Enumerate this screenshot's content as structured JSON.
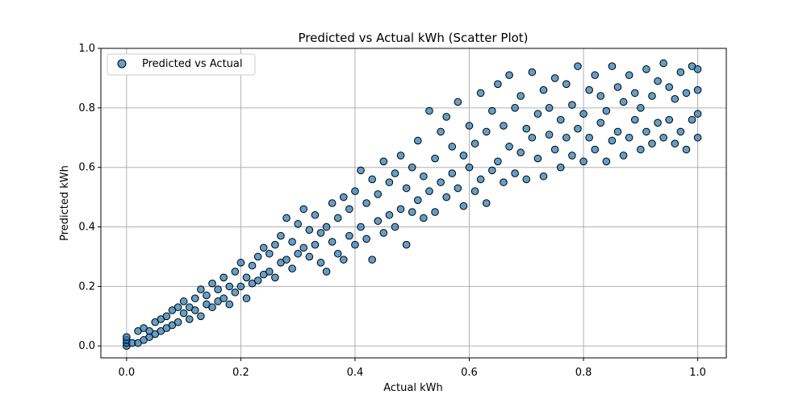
{
  "chart_data": {
    "type": "scatter",
    "title": "Predicted vs Actual kWh (Scatter Plot)",
    "xlabel": "Actual kWh",
    "ylabel": "Predicted kWh",
    "xlim": [
      -0.045,
      1.05
    ],
    "ylim": [
      -0.04,
      1.0
    ],
    "xticks": [
      0.0,
      0.2,
      0.4,
      0.6,
      0.8,
      1.0
    ],
    "xtick_labels": [
      "0.0",
      "0.2",
      "0.4",
      "0.6",
      "0.8",
      "1.0"
    ],
    "yticks": [
      0.0,
      0.2,
      0.4,
      0.6,
      0.8,
      1.0
    ],
    "ytick_labels": [
      "0.0",
      "0.2",
      "0.4",
      "0.6",
      "0.8",
      "1.0"
    ],
    "grid": true,
    "legend_position": "top-left",
    "marker_color": "#1f77b4",
    "marker_edge_color": "#000000",
    "series": [
      {
        "name": "Predicted vs Actual",
        "points": [
          [
            0.0,
            0.0
          ],
          [
            0.0,
            0.01
          ],
          [
            0.0,
            0.02
          ],
          [
            0.0,
            0.03
          ],
          [
            0.01,
            0.01
          ],
          [
            0.02,
            0.01
          ],
          [
            0.02,
            0.05
          ],
          [
            0.03,
            0.02
          ],
          [
            0.03,
            0.06
          ],
          [
            0.04,
            0.03
          ],
          [
            0.04,
            0.05
          ],
          [
            0.05,
            0.04
          ],
          [
            0.05,
            0.08
          ],
          [
            0.06,
            0.05
          ],
          [
            0.06,
            0.09
          ],
          [
            0.07,
            0.06
          ],
          [
            0.07,
            0.1
          ],
          [
            0.08,
            0.07
          ],
          [
            0.08,
            0.12
          ],
          [
            0.09,
            0.08
          ],
          [
            0.09,
            0.13
          ],
          [
            0.1,
            0.11
          ],
          [
            0.1,
            0.15
          ],
          [
            0.11,
            0.09
          ],
          [
            0.11,
            0.13
          ],
          [
            0.12,
            0.12
          ],
          [
            0.12,
            0.16
          ],
          [
            0.13,
            0.1
          ],
          [
            0.13,
            0.19
          ],
          [
            0.14,
            0.14
          ],
          [
            0.14,
            0.17
          ],
          [
            0.15,
            0.13
          ],
          [
            0.15,
            0.21
          ],
          [
            0.16,
            0.15
          ],
          [
            0.16,
            0.19
          ],
          [
            0.17,
            0.16
          ],
          [
            0.17,
            0.23
          ],
          [
            0.18,
            0.14
          ],
          [
            0.18,
            0.2
          ],
          [
            0.19,
            0.18
          ],
          [
            0.19,
            0.25
          ],
          [
            0.2,
            0.2
          ],
          [
            0.2,
            0.28
          ],
          [
            0.21,
            0.16
          ],
          [
            0.21,
            0.23
          ],
          [
            0.22,
            0.21
          ],
          [
            0.22,
            0.27
          ],
          [
            0.23,
            0.22
          ],
          [
            0.23,
            0.3
          ],
          [
            0.24,
            0.24
          ],
          [
            0.24,
            0.33
          ],
          [
            0.25,
            0.25
          ],
          [
            0.25,
            0.31
          ],
          [
            0.26,
            0.23
          ],
          [
            0.26,
            0.34
          ],
          [
            0.27,
            0.28
          ],
          [
            0.27,
            0.37
          ],
          [
            0.28,
            0.29
          ],
          [
            0.28,
            0.43
          ],
          [
            0.29,
            0.26
          ],
          [
            0.29,
            0.35
          ],
          [
            0.3,
            0.31
          ],
          [
            0.3,
            0.41
          ],
          [
            0.31,
            0.33
          ],
          [
            0.31,
            0.46
          ],
          [
            0.32,
            0.3
          ],
          [
            0.32,
            0.39
          ],
          [
            0.33,
            0.34
          ],
          [
            0.33,
            0.44
          ],
          [
            0.34,
            0.28
          ],
          [
            0.34,
            0.38
          ],
          [
            0.35,
            0.25
          ],
          [
            0.35,
            0.4
          ],
          [
            0.36,
            0.35
          ],
          [
            0.36,
            0.48
          ],
          [
            0.37,
            0.31
          ],
          [
            0.37,
            0.43
          ],
          [
            0.38,
            0.29
          ],
          [
            0.38,
            0.5
          ],
          [
            0.39,
            0.37
          ],
          [
            0.39,
            0.46
          ],
          [
            0.4,
            0.34
          ],
          [
            0.4,
            0.52
          ],
          [
            0.41,
            0.4
          ],
          [
            0.41,
            0.59
          ],
          [
            0.42,
            0.36
          ],
          [
            0.42,
            0.48
          ],
          [
            0.43,
            0.29
          ],
          [
            0.43,
            0.56
          ],
          [
            0.44,
            0.42
          ],
          [
            0.44,
            0.51
          ],
          [
            0.45,
            0.38
          ],
          [
            0.45,
            0.62
          ],
          [
            0.46,
            0.44
          ],
          [
            0.46,
            0.55
          ],
          [
            0.47,
            0.4
          ],
          [
            0.47,
            0.58
          ],
          [
            0.48,
            0.46
          ],
          [
            0.48,
            0.64
          ],
          [
            0.49,
            0.34
          ],
          [
            0.49,
            0.53
          ],
          [
            0.5,
            0.45
          ],
          [
            0.5,
            0.6
          ],
          [
            0.51,
            0.49
          ],
          [
            0.51,
            0.69
          ],
          [
            0.52,
            0.43
          ],
          [
            0.52,
            0.57
          ],
          [
            0.53,
            0.52
          ],
          [
            0.53,
            0.79
          ],
          [
            0.54,
            0.45
          ],
          [
            0.54,
            0.63
          ],
          [
            0.55,
            0.55
          ],
          [
            0.55,
            0.72
          ],
          [
            0.56,
            0.5
          ],
          [
            0.56,
            0.77
          ],
          [
            0.57,
            0.58
          ],
          [
            0.57,
            0.67
          ],
          [
            0.58,
            0.53
          ],
          [
            0.58,
            0.82
          ],
          [
            0.59,
            0.47
          ],
          [
            0.59,
            0.64
          ],
          [
            0.6,
            0.6
          ],
          [
            0.6,
            0.74
          ],
          [
            0.61,
            0.52
          ],
          [
            0.61,
            0.68
          ],
          [
            0.62,
            0.56
          ],
          [
            0.62,
            0.85
          ],
          [
            0.63,
            0.48
          ],
          [
            0.63,
            0.72
          ],
          [
            0.64,
            0.59
          ],
          [
            0.64,
            0.79
          ],
          [
            0.65,
            0.62
          ],
          [
            0.65,
            0.88
          ],
          [
            0.66,
            0.55
          ],
          [
            0.66,
            0.74
          ],
          [
            0.67,
            0.67
          ],
          [
            0.67,
            0.91
          ],
          [
            0.68,
            0.58
          ],
          [
            0.68,
            0.8
          ],
          [
            0.69,
            0.65
          ],
          [
            0.69,
            0.84
          ],
          [
            0.7,
            0.56
          ],
          [
            0.7,
            0.73
          ],
          [
            0.71,
            0.7
          ],
          [
            0.71,
            0.92
          ],
          [
            0.72,
            0.63
          ],
          [
            0.72,
            0.78
          ],
          [
            0.73,
            0.57
          ],
          [
            0.73,
            0.86
          ],
          [
            0.74,
            0.71
          ],
          [
            0.74,
            0.8
          ],
          [
            0.75,
            0.66
          ],
          [
            0.75,
            0.9
          ],
          [
            0.76,
            0.6
          ],
          [
            0.76,
            0.76
          ],
          [
            0.77,
            0.7
          ],
          [
            0.77,
            0.88
          ],
          [
            0.78,
            0.64
          ],
          [
            0.78,
            0.81
          ],
          [
            0.79,
            0.73
          ],
          [
            0.79,
            0.94
          ],
          [
            0.8,
            0.62
          ],
          [
            0.8,
            0.78
          ],
          [
            0.81,
            0.7
          ],
          [
            0.81,
            0.86
          ],
          [
            0.82,
            0.66
          ],
          [
            0.82,
            0.91
          ],
          [
            0.83,
            0.75
          ],
          [
            0.83,
            0.84
          ],
          [
            0.84,
            0.62
          ],
          [
            0.84,
            0.79
          ],
          [
            0.85,
            0.69
          ],
          [
            0.85,
            0.94
          ],
          [
            0.86,
            0.72
          ],
          [
            0.86,
            0.87
          ],
          [
            0.87,
            0.64
          ],
          [
            0.87,
            0.82
          ],
          [
            0.88,
            0.7
          ],
          [
            0.88,
            0.91
          ],
          [
            0.89,
            0.76
          ],
          [
            0.89,
            0.85
          ],
          [
            0.9,
            0.66
          ],
          [
            0.9,
            0.8
          ],
          [
            0.91,
            0.72
          ],
          [
            0.91,
            0.93
          ],
          [
            0.92,
            0.68
          ],
          [
            0.92,
            0.84
          ],
          [
            0.93,
            0.75
          ],
          [
            0.93,
            0.89
          ],
          [
            0.94,
            0.7
          ],
          [
            0.94,
            0.95
          ],
          [
            0.95,
            0.76
          ],
          [
            0.95,
            0.87
          ],
          [
            0.96,
            0.68
          ],
          [
            0.96,
            0.83
          ],
          [
            0.97,
            0.72
          ],
          [
            0.97,
            0.92
          ],
          [
            0.98,
            0.66
          ],
          [
            0.98,
            0.85
          ],
          [
            0.99,
            0.76
          ],
          [
            0.99,
            0.94
          ],
          [
            1.0,
            0.7
          ],
          [
            1.0,
            0.78
          ],
          [
            1.0,
            0.86
          ],
          [
            1.0,
            0.93
          ]
        ]
      }
    ]
  }
}
